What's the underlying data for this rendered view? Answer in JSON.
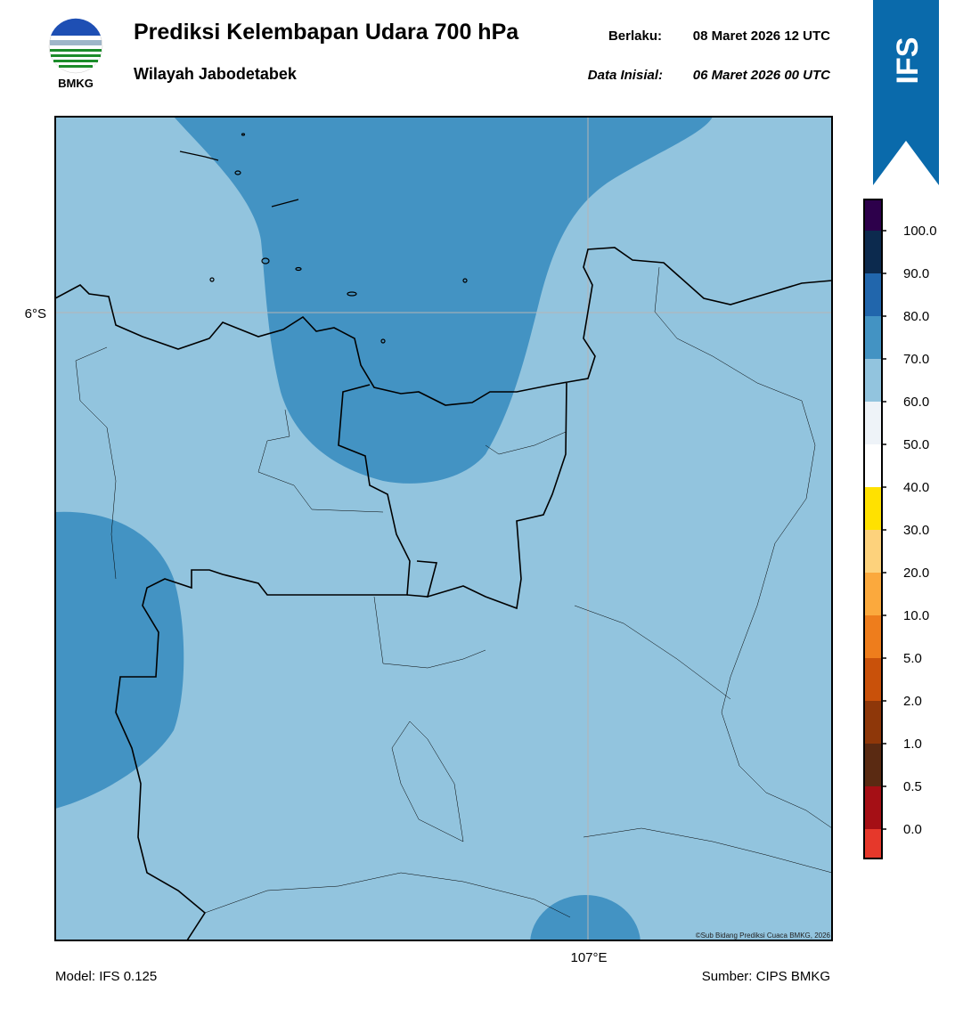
{
  "header": {
    "logo_text": "BMKG",
    "title": "Prediksi Kelembapan Udara 700 hPa",
    "subtitle": "Wilayah Jabodetabek",
    "valid_label": "Berlaku:",
    "valid_time": "08 Maret 2026 12 UTC",
    "init_label": "Data Inisial:",
    "init_time": "06 Maret 2026 00 UTC",
    "badge": "IFS"
  },
  "map": {
    "lat_label": "6°S",
    "lon_label": "107°E",
    "credit": "©Sub Bidang Prediksi Cuaca BMKG, 2026"
  },
  "colorbar": {
    "ticks": [
      {
        "value": 0,
        "label": "0.0"
      },
      {
        "value": 0.5,
        "label": "0.5"
      },
      {
        "value": 1,
        "label": "1.0"
      },
      {
        "value": 2,
        "label": "2.0"
      },
      {
        "value": 5,
        "label": "5.0"
      },
      {
        "value": 10,
        "label": "10.0"
      },
      {
        "value": 20,
        "label": "20.0"
      },
      {
        "value": 30,
        "label": "30.0"
      },
      {
        "value": 40,
        "label": "40.0"
      },
      {
        "value": 50,
        "label": "50.0"
      },
      {
        "value": 60,
        "label": "60.0"
      },
      {
        "value": 70,
        "label": "70.0"
      },
      {
        "value": 80,
        "label": "80.0"
      },
      {
        "value": 90,
        "label": "90.0"
      },
      {
        "value": 100,
        "label": "100.0"
      }
    ],
    "colors": [
      "#e6382b",
      "#a50f15",
      "#5a2a12",
      "#8e3709",
      "#c9510a",
      "#ee7d1c",
      "#fba93d",
      "#fdd27c",
      "#ffe100",
      "#ffffff",
      "#eef3f8",
      "#92c4de",
      "#4393c3",
      "#2166ac",
      "#0c2a4e",
      "#2d004b"
    ]
  },
  "footer": {
    "model": "Model: IFS 0.125",
    "source": "Sumber: CIPS BMKG"
  }
}
